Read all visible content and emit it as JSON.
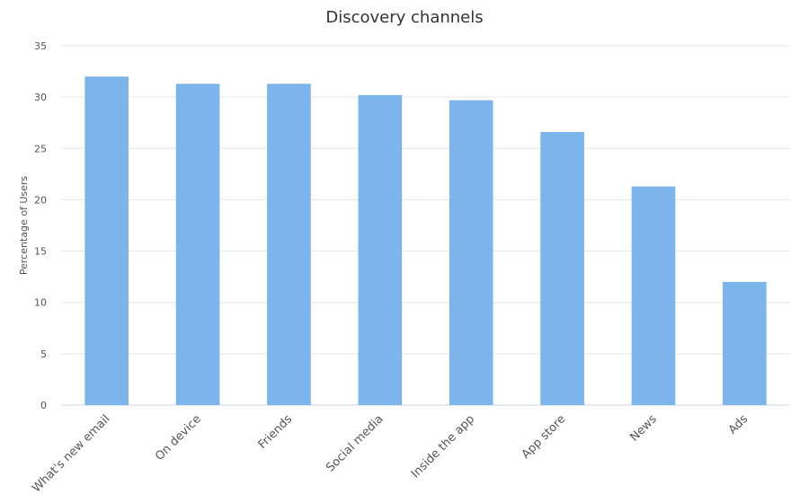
{
  "chart_data": {
    "type": "bar",
    "title": "Discovery channels",
    "xlabel": "",
    "ylabel": "Percentage of Users",
    "categories": [
      "What's new email",
      "On device",
      "Friends",
      "Social media",
      "Inside the app",
      "App store",
      "News",
      "Ads"
    ],
    "values": [
      32.0,
      31.3,
      31.3,
      30.2,
      29.7,
      26.6,
      21.3,
      12.0
    ],
    "ylim": [
      0,
      35
    ],
    "yticks": [
      0,
      5,
      10,
      15,
      20,
      25,
      30,
      35
    ],
    "grid": true,
    "legend": "none",
    "bar_color": "#7cb4ec"
  }
}
